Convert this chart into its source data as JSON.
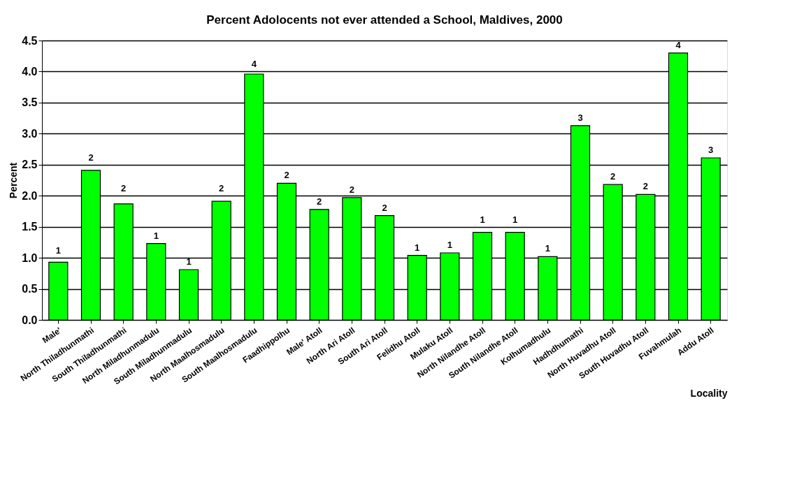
{
  "chart_data": {
    "type": "bar",
    "title": "Percent Adolocents not ever attended a School, Maldives, 2000",
    "xlabel": "Locality",
    "ylabel": "Percent",
    "categories": [
      "Male'",
      "North Thiladhunmathi",
      "South Thiladhunmathi",
      "North Miladhunmadulu",
      "South Miladhunmadulu",
      "North Maalhosmadulu",
      "South Maalhosmadulu",
      "Faadhippolhu",
      "Male' Atoll",
      "North Ari Atoll",
      "South Ari Atoll",
      "Felidhu Atoll",
      "Mulaku Atoll",
      "North Nilandhe Atoll",
      "South Nilandhe Atoll",
      "Kolhumadhulu",
      "Hadhdhumathi",
      "North Huvadhu Atoll",
      "South Huvadhu Atoll",
      "Fuvahmulah",
      "Addu Atoll"
    ],
    "values": [
      0.93,
      2.41,
      1.87,
      1.23,
      0.81,
      1.91,
      3.96,
      2.2,
      1.78,
      1.97,
      1.68,
      1.04,
      1.08,
      1.41,
      1.41,
      1.02,
      3.13,
      2.18,
      2.02,
      4.3,
      2.61
    ],
    "value_labels": [
      "1",
      "2",
      "2",
      "1",
      "1",
      "2",
      "4",
      "2",
      "2",
      "2",
      "2",
      "1",
      "1",
      "1",
      "1",
      "1",
      "3",
      "2",
      "2",
      "4",
      "3"
    ],
    "color": "#00ff00",
    "ylim": [
      0,
      4.5
    ],
    "yticks": [
      {
        "value": 0,
        "label": "0.0"
      },
      {
        "value": 0.5,
        "label": "0.5"
      },
      {
        "value": 1,
        "label": "1.0"
      },
      {
        "value": 1.5,
        "label": "1.5"
      },
      {
        "value": 2,
        "label": "2.0"
      },
      {
        "value": 2.5,
        "label": "2.5"
      },
      {
        "value": 3,
        "label": "3.0"
      },
      {
        "value": 3.5,
        "label": "3.5"
      },
      {
        "value": 4,
        "label": "4.0"
      },
      {
        "value": 4.5,
        "label": "4.5"
      }
    ],
    "grid": "y"
  }
}
